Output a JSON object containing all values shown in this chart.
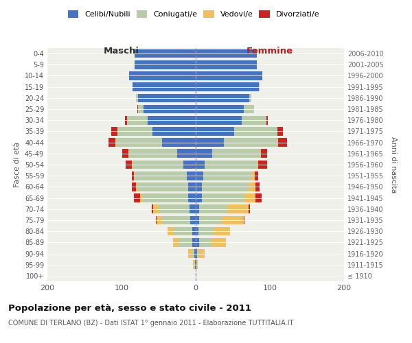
{
  "age_groups": [
    "100+",
    "95-99",
    "90-94",
    "85-89",
    "80-84",
    "75-79",
    "70-74",
    "65-69",
    "60-64",
    "55-59",
    "50-54",
    "45-49",
    "40-44",
    "35-39",
    "30-34",
    "25-29",
    "20-24",
    "15-19",
    "10-14",
    "5-9",
    "0-4"
  ],
  "birth_years": [
    "≤ 1910",
    "1911-1915",
    "1916-1920",
    "1921-1925",
    "1926-1930",
    "1931-1935",
    "1936-1940",
    "1941-1945",
    "1946-1950",
    "1951-1955",
    "1956-1960",
    "1961-1965",
    "1966-1970",
    "1971-1975",
    "1976-1980",
    "1981-1985",
    "1986-1990",
    "1991-1995",
    "1996-2000",
    "2001-2005",
    "2006-2010"
  ],
  "maschi": {
    "celibi": [
      0,
      1,
      2,
      5,
      5,
      7,
      8,
      10,
      10,
      12,
      17,
      25,
      45,
      58,
      65,
      70,
      78,
      85,
      90,
      82,
      82
    ],
    "coniugati": [
      0,
      1,
      3,
      18,
      25,
      38,
      42,
      62,
      68,
      70,
      68,
      65,
      62,
      48,
      28,
      8,
      3,
      0,
      0,
      0,
      0
    ],
    "vedovi": [
      0,
      2,
      5,
      8,
      8,
      8,
      7,
      3,
      3,
      1,
      1,
      1,
      1,
      0,
      0,
      0,
      0,
      0,
      0,
      0,
      0
    ],
    "divorziati": [
      0,
      0,
      0,
      0,
      0,
      1,
      2,
      8,
      5,
      3,
      8,
      8,
      10,
      8,
      2,
      1,
      0,
      0,
      0,
      0,
      0
    ]
  },
  "femmine": {
    "nubili": [
      0,
      1,
      2,
      5,
      4,
      5,
      5,
      8,
      8,
      10,
      12,
      22,
      38,
      52,
      62,
      65,
      72,
      85,
      90,
      82,
      82
    ],
    "coniugate": [
      0,
      0,
      2,
      16,
      20,
      30,
      38,
      58,
      63,
      65,
      70,
      65,
      72,
      58,
      33,
      14,
      3,
      1,
      0,
      0,
      0
    ],
    "vedove": [
      0,
      2,
      8,
      20,
      22,
      30,
      28,
      15,
      10,
      5,
      2,
      1,
      1,
      0,
      0,
      0,
      0,
      0,
      0,
      0,
      0
    ],
    "divorziate": [
      0,
      0,
      0,
      0,
      0,
      1,
      2,
      8,
      5,
      4,
      12,
      8,
      12,
      8,
      2,
      0,
      0,
      0,
      0,
      0,
      0
    ]
  },
  "colors": {
    "celibi": "#4472C4",
    "coniugati": "#b8ccaa",
    "vedovi": "#f0c060",
    "divorziati": "#cc2222"
  },
  "legend_labels": [
    "Celibi/Nubili",
    "Coniugati/e",
    "Vedovi/e",
    "Divorziati/e"
  ],
  "title": "Popolazione per età, sesso e stato civile - 2011",
  "subtitle": "COMUNE DI TERLANO (BZ) - Dati ISTAT 1° gennaio 2011 - Elaborazione TUTTITALIA.IT",
  "xlabel_left": "Maschi",
  "xlabel_right": "Femmine",
  "ylabel_left": "Fasce di età",
  "ylabel_right": "Anni di nascita",
  "xlim": 200,
  "bg_color": "#f0f0eb",
  "fig_color": "#ffffff"
}
